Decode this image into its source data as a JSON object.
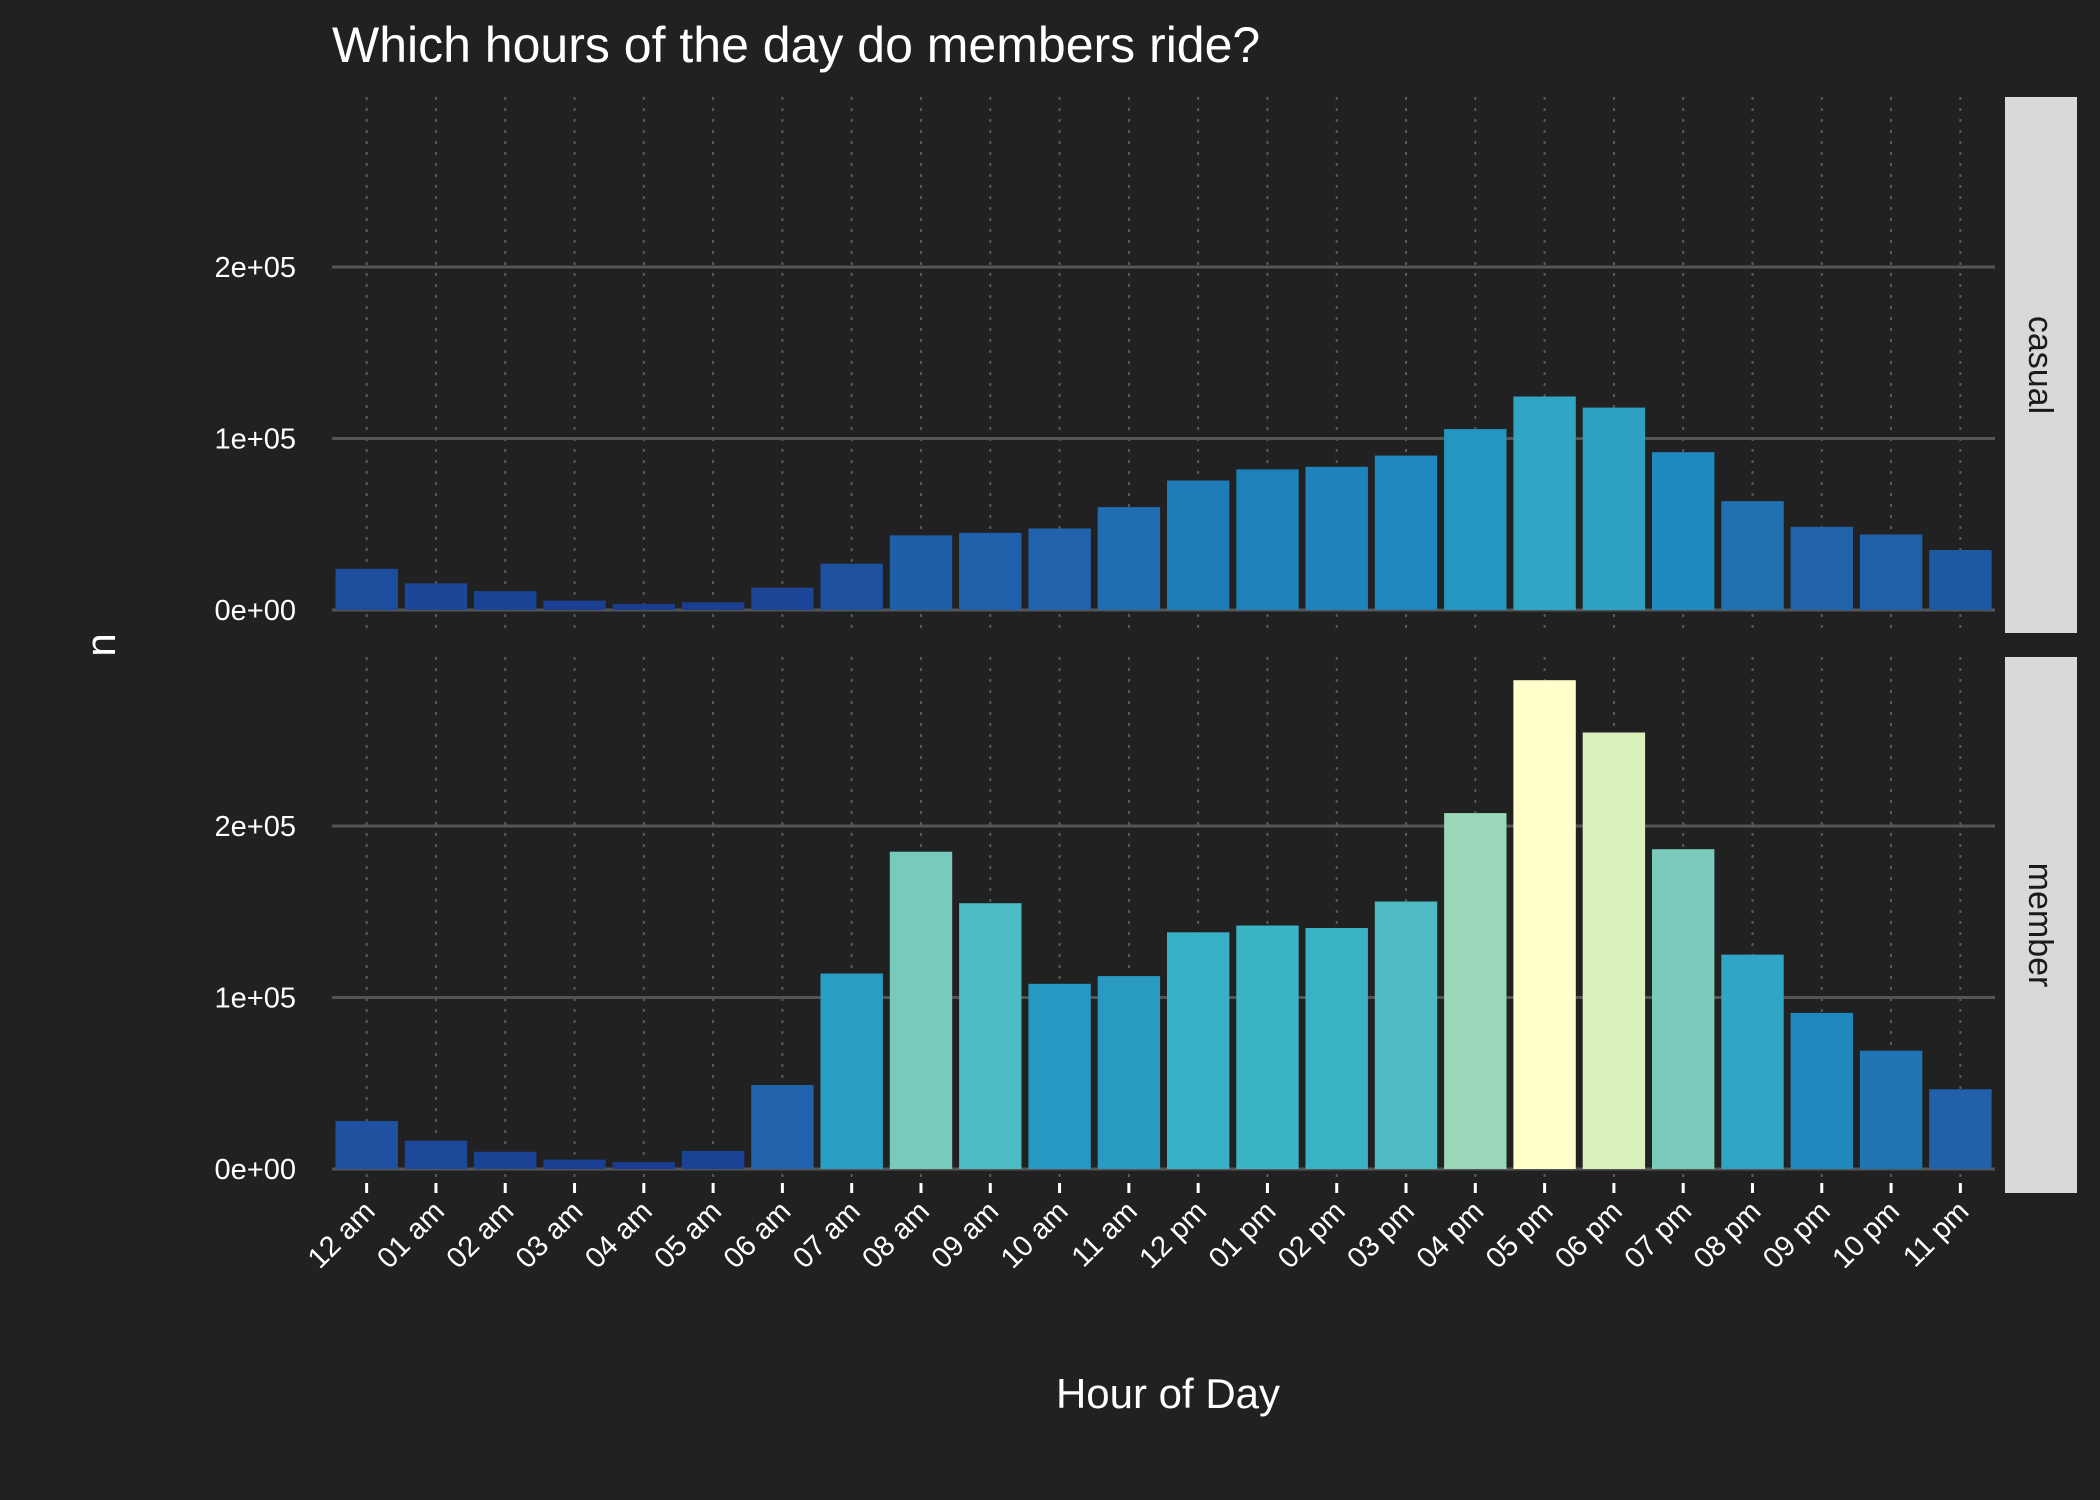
{
  "chart_data": {
    "type": "bar",
    "title": "Which hours of the day do members ride?",
    "xlabel": "Hour of Day",
    "ylabel": "n",
    "categories": [
      "12 am",
      "01 am",
      "02 am",
      "03 am",
      "04 am",
      "05 am",
      "06 am",
      "07 am",
      "08 am",
      "09 am",
      "10 am",
      "11 am",
      "12 pm",
      "01 pm",
      "02 pm",
      "03 pm",
      "04 pm",
      "05 pm",
      "06 pm",
      "07 pm",
      "08 pm",
      "09 pm",
      "10 pm",
      "11 pm"
    ],
    "ylim": [
      0,
      300000
    ],
    "yticks": [
      0,
      100000,
      200000
    ],
    "ytick_labels": [
      "0e+00",
      "1e+05",
      "2e+05"
    ],
    "color_scale": [
      "#1a3a8f",
      "#2062ab",
      "#1f8dc0",
      "#3bb4c6",
      "#7fcdbb",
      "#c7e9b4",
      "#ffffcc"
    ],
    "background": "#212121",
    "strip_color": "#d9d9d9",
    "grid": true,
    "series": [
      {
        "name": "casual",
        "values": [
          24000,
          15500,
          11000,
          5500,
          3500,
          4500,
          13000,
          27000,
          43500,
          45000,
          47500,
          60000,
          75500,
          82000,
          83500,
          90000,
          105500,
          124500,
          118000,
          92000,
          63500,
          48500,
          44000,
          35000
        ]
      },
      {
        "name": "member",
        "values": [
          28000,
          16500,
          10000,
          5500,
          4000,
          10500,
          49000,
          114000,
          185000,
          155000,
          108000,
          112500,
          138000,
          142000,
          140500,
          156000,
          207500,
          285000,
          254500,
          186500,
          125000,
          91000,
          69000,
          46500
        ]
      }
    ]
  }
}
